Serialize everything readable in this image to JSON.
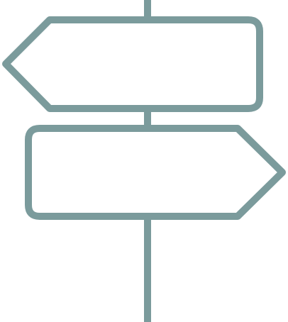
{
  "icon": {
    "name": "signpost-icon",
    "stroke_color": "#7b9b9c",
    "background_color": "#ffffff"
  }
}
